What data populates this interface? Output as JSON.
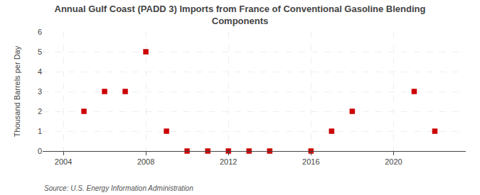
{
  "chart_data": {
    "type": "scatter",
    "title": "Annual Gulf Coast (PADD 3) Imports from France of Conventional Gasoline Blending\nComponents",
    "ylabel": "Thousand Barrels per Day",
    "annotations": [
      "Source: U.S. Energy Information Administration"
    ],
    "x": [
      2005,
      2006,
      2007,
      2008,
      2009,
      2010,
      2011,
      2012,
      2013,
      2014,
      2016,
      2017,
      2018,
      2021,
      2022
    ],
    "values": [
      2,
      3,
      3,
      5,
      1,
      0,
      0,
      0,
      0,
      0,
      0,
      1,
      2,
      3,
      1
    ],
    "color": "#cc0000",
    "marker": "square",
    "xlim": [
      2003.0,
      2023.5
    ],
    "xticks": [
      2004,
      2008,
      2012,
      2016,
      2020
    ],
    "ylim": [
      0,
      6
    ],
    "yticks": [
      0,
      1,
      2,
      3,
      4,
      5,
      6
    ],
    "grid": true
  }
}
